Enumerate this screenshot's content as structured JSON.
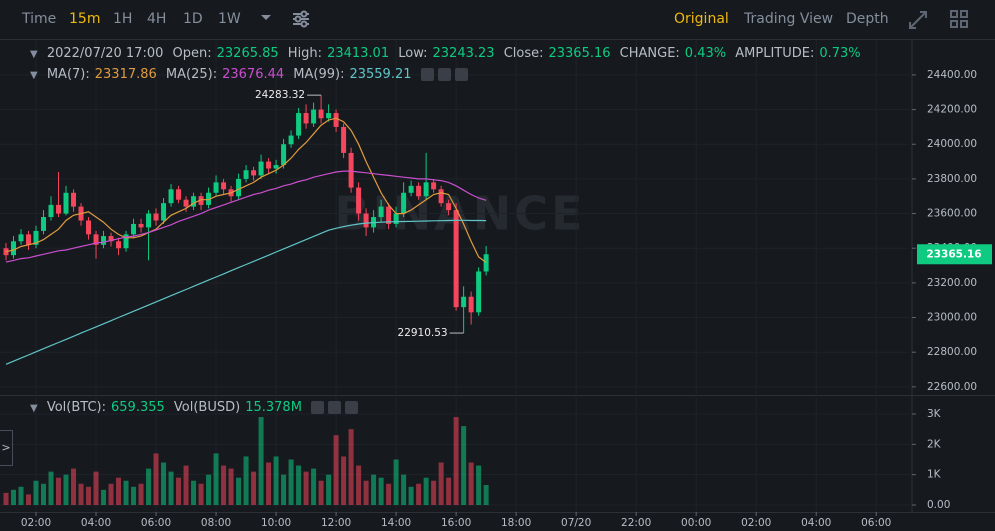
{
  "toolbar": {
    "intervals": [
      "Time",
      "15m",
      "1H",
      "4H",
      "1D",
      "1W"
    ],
    "views": [
      "Original",
      "Trading View",
      "Depth"
    ]
  },
  "info": {
    "datetime": "2022/07/20 17:00",
    "open_label": "Open:",
    "high_label": "High:",
    "low_label": "Low:",
    "close_label": "Close:",
    "change_label": "CHANGE:",
    "change": "0.43%",
    "amplitude_label": "AMPLITUDE:",
    "amplitude": "0.73%",
    "vol_label": "Vol(BTC):",
    "vol_busd_label": "Vol(BUSD)",
    "vol_busd": "15.378M"
  },
  "watermark": "BINANCE",
  "chart_data": {
    "type": "candlestick",
    "open": [
      23400,
      23360,
      23440,
      23480,
      23420,
      23500,
      23580,
      23650,
      23600,
      23720,
      23640,
      23560,
      23480,
      23420,
      23470,
      23440,
      23400,
      23480,
      23540,
      23520,
      23600,
      23560,
      23660,
      23740,
      23680,
      23640,
      23700,
      23650,
      23720,
      23780,
      23740,
      23700,
      23800,
      23850,
      23820,
      23900,
      23860,
      23880,
      24000,
      24050,
      24180,
      24120,
      24200,
      24150,
      24180,
      24100,
      23950,
      23750,
      23600,
      23520,
      23580,
      23640,
      23540,
      23600,
      23720,
      23760,
      23700,
      23780,
      23740,
      23660,
      23620,
      23060,
      23120,
      23030,
      23265.85
    ],
    "high": [
      23430,
      23470,
      23510,
      23500,
      23530,
      23620,
      23700,
      23840,
      23760,
      23740,
      23660,
      23580,
      23500,
      23500,
      23490,
      23460,
      23500,
      23570,
      23570,
      23620,
      23630,
      23690,
      23770,
      23760,
      23700,
      23720,
      23720,
      23750,
      23820,
      23800,
      23760,
      23830,
      23880,
      23870,
      23940,
      23920,
      23910,
      24030,
      24080,
      24210,
      24230,
      24240,
      24283.32,
      24230,
      24200,
      24120,
      23980,
      23780,
      23630,
      23620,
      23680,
      23660,
      23640,
      23780,
      23790,
      23780,
      23950,
      23800,
      23760,
      23680,
      23660,
      23180,
      23150,
      23290,
      23413.01
    ],
    "low": [
      23330,
      23340,
      23420,
      23390,
      23400,
      23480,
      23560,
      23580,
      23590,
      23610,
      23530,
      23450,
      23340,
      23400,
      23410,
      23360,
      23380,
      23460,
      23490,
      23330,
      23530,
      23540,
      23640,
      23660,
      23610,
      23620,
      23620,
      23630,
      23700,
      23710,
      23670,
      23680,
      23780,
      23790,
      23800,
      23830,
      23830,
      23860,
      23980,
      24030,
      24090,
      24100,
      24120,
      24130,
      24070,
      23920,
      23720,
      23560,
      23470,
      23490,
      23550,
      23510,
      23520,
      23580,
      23700,
      23680,
      23680,
      23720,
      23640,
      23590,
      23040,
      22910.53,
      22960,
      23010,
      23243.23
    ],
    "close": [
      23360,
      23440,
      23480,
      23420,
      23500,
      23580,
      23650,
      23600,
      23720,
      23640,
      23560,
      23480,
      23420,
      23470,
      23440,
      23400,
      23480,
      23540,
      23520,
      23600,
      23560,
      23660,
      23740,
      23680,
      23640,
      23700,
      23650,
      23720,
      23780,
      23740,
      23700,
      23800,
      23850,
      23820,
      23900,
      23860,
      23880,
      24000,
      24050,
      24180,
      24120,
      24200,
      24150,
      24180,
      24100,
      23950,
      23750,
      23600,
      23520,
      23580,
      23640,
      23540,
      23600,
      23720,
      23760,
      23700,
      23780,
      23740,
      23660,
      23620,
      23060,
      23120,
      23030,
      23265.85,
      23365.16
    ],
    "volume": [
      400,
      500,
      600,
      350,
      800,
      700,
      1100,
      900,
      1000,
      1200,
      700,
      600,
      1100,
      500,
      700,
      900,
      800,
      600,
      700,
      1200,
      1700,
      1400,
      1100,
      900,
      1300,
      800,
      700,
      1000,
      1700,
      1300,
      1200,
      900,
      1600,
      1100,
      2900,
      1400,
      1600,
      1000,
      1500,
      1300,
      1100,
      1200,
      800,
      1000,
      2300,
      1600,
      2500,
      1300,
      800,
      1000,
      900,
      700,
      1500,
      1000,
      600,
      700,
      900,
      800,
      1400,
      900,
      2900,
      2600,
      1400,
      1300,
      659.355
    ],
    "ma": [
      {
        "name": "MA(7):",
        "color": "#e09b3d",
        "values": [
          23380,
          23390,
          23410,
          23420,
          23430,
          23450,
          23480,
          23510,
          23560,
          23590,
          23600,
          23610,
          23580,
          23550,
          23510,
          23480,
          23460,
          23460,
          23470,
          23490,
          23510,
          23550,
          23590,
          23610,
          23630,
          23660,
          23680,
          23680,
          23700,
          23710,
          23720,
          23740,
          23760,
          23780,
          23810,
          23830,
          23850,
          23880,
          23920,
          23970,
          24010,
          24060,
          24110,
          24140,
          24150,
          24130,
          24080,
          24000,
          23900,
          23810,
          23720,
          23650,
          23600,
          23600,
          23620,
          23650,
          23680,
          23710,
          23720,
          23710,
          23630,
          23540,
          23440,
          23350,
          23317.86
        ]
      },
      {
        "name": "MA(25):",
        "color": "#c94fd0",
        "values": [
          23320,
          23330,
          23340,
          23345,
          23355,
          23365,
          23375,
          23385,
          23390,
          23400,
          23410,
          23420,
          23430,
          23435,
          23445,
          23455,
          23465,
          23470,
          23480,
          23490,
          23505,
          23520,
          23535,
          23555,
          23570,
          23585,
          23600,
          23620,
          23635,
          23650,
          23665,
          23680,
          23695,
          23710,
          23720,
          23735,
          23745,
          23760,
          23770,
          23785,
          23795,
          23810,
          23820,
          23830,
          23840,
          23845,
          23845,
          23840,
          23835,
          23830,
          23825,
          23820,
          23815,
          23810,
          23805,
          23800,
          23800,
          23795,
          23790,
          23780,
          23760,
          23735,
          23710,
          23690,
          23676.44
        ]
      },
      {
        "name": "MA(99):",
        "color": "#5fc5c9",
        "values": [
          22730,
          22748,
          22766,
          22784,
          22802,
          22820,
          22838,
          22856,
          22874,
          22892,
          22910,
          22928,
          22946,
          22964,
          22982,
          23000,
          23018,
          23036,
          23054,
          23072,
          23090,
          23108,
          23126,
          23144,
          23162,
          23180,
          23198,
          23216,
          23234,
          23252,
          23270,
          23288,
          23306,
          23324,
          23342,
          23360,
          23378,
          23396,
          23414,
          23432,
          23450,
          23468,
          23486,
          23504,
          23515,
          23525,
          23533,
          23540,
          23545,
          23548,
          23550,
          23552,
          23553,
          23554,
          23555,
          23556,
          23557,
          23558,
          23559,
          23560,
          23561,
          23561,
          23560,
          23560,
          23559.21
        ]
      }
    ],
    "up_color": "#0ecb81",
    "down_color": "#f6465d",
    "xlim": [
      -0.8,
      120.5
    ],
    "xticks": [
      {
        "value": 4,
        "label": "02:00"
      },
      {
        "value": 12,
        "label": "04:00"
      },
      {
        "value": 20,
        "label": "06:00"
      },
      {
        "value": 28,
        "label": "08:00"
      },
      {
        "value": 36,
        "label": "10:00"
      },
      {
        "value": 44,
        "label": "12:00"
      },
      {
        "value": 52,
        "label": "14:00"
      },
      {
        "value": 60,
        "label": "16:00"
      },
      {
        "value": 68,
        "label": "18:00"
      },
      {
        "value": 76,
        "label": "07/20"
      },
      {
        "value": 84,
        "label": "22:00"
      },
      {
        "value": 92,
        "label": "00:00"
      },
      {
        "value": 100,
        "label": "02:00"
      },
      {
        "value": 108,
        "label": "04:00"
      },
      {
        "value": 116,
        "label": "06:00"
      }
    ],
    "ylim": [
      22553,
      24590
    ],
    "yticks": [
      {
        "value": 22600,
        "label": "22600.00"
      },
      {
        "value": 22800,
        "label": "22800.00"
      },
      {
        "value": 23000,
        "label": "23000.00"
      },
      {
        "value": 23200,
        "label": "23200.00"
      },
      {
        "value": 23400,
        "label": "23400.00"
      },
      {
        "value": 23600,
        "label": "23600.00"
      },
      {
        "value": 23800,
        "label": "23800.00"
      },
      {
        "value": 24000,
        "label": "24000.00"
      },
      {
        "value": 24200,
        "label": "24200.00"
      },
      {
        "value": 24400,
        "label": "24400.00"
      }
    ],
    "vol_ylim": [
      0,
      3560
    ],
    "vol_yticks": [
      {
        "value": 0,
        "label": "0.00"
      },
      {
        "value": 1000,
        "label": "1K"
      },
      {
        "value": 2000,
        "label": "2K"
      },
      {
        "value": 3000,
        "label": "3K"
      }
    ],
    "grid": true
  }
}
